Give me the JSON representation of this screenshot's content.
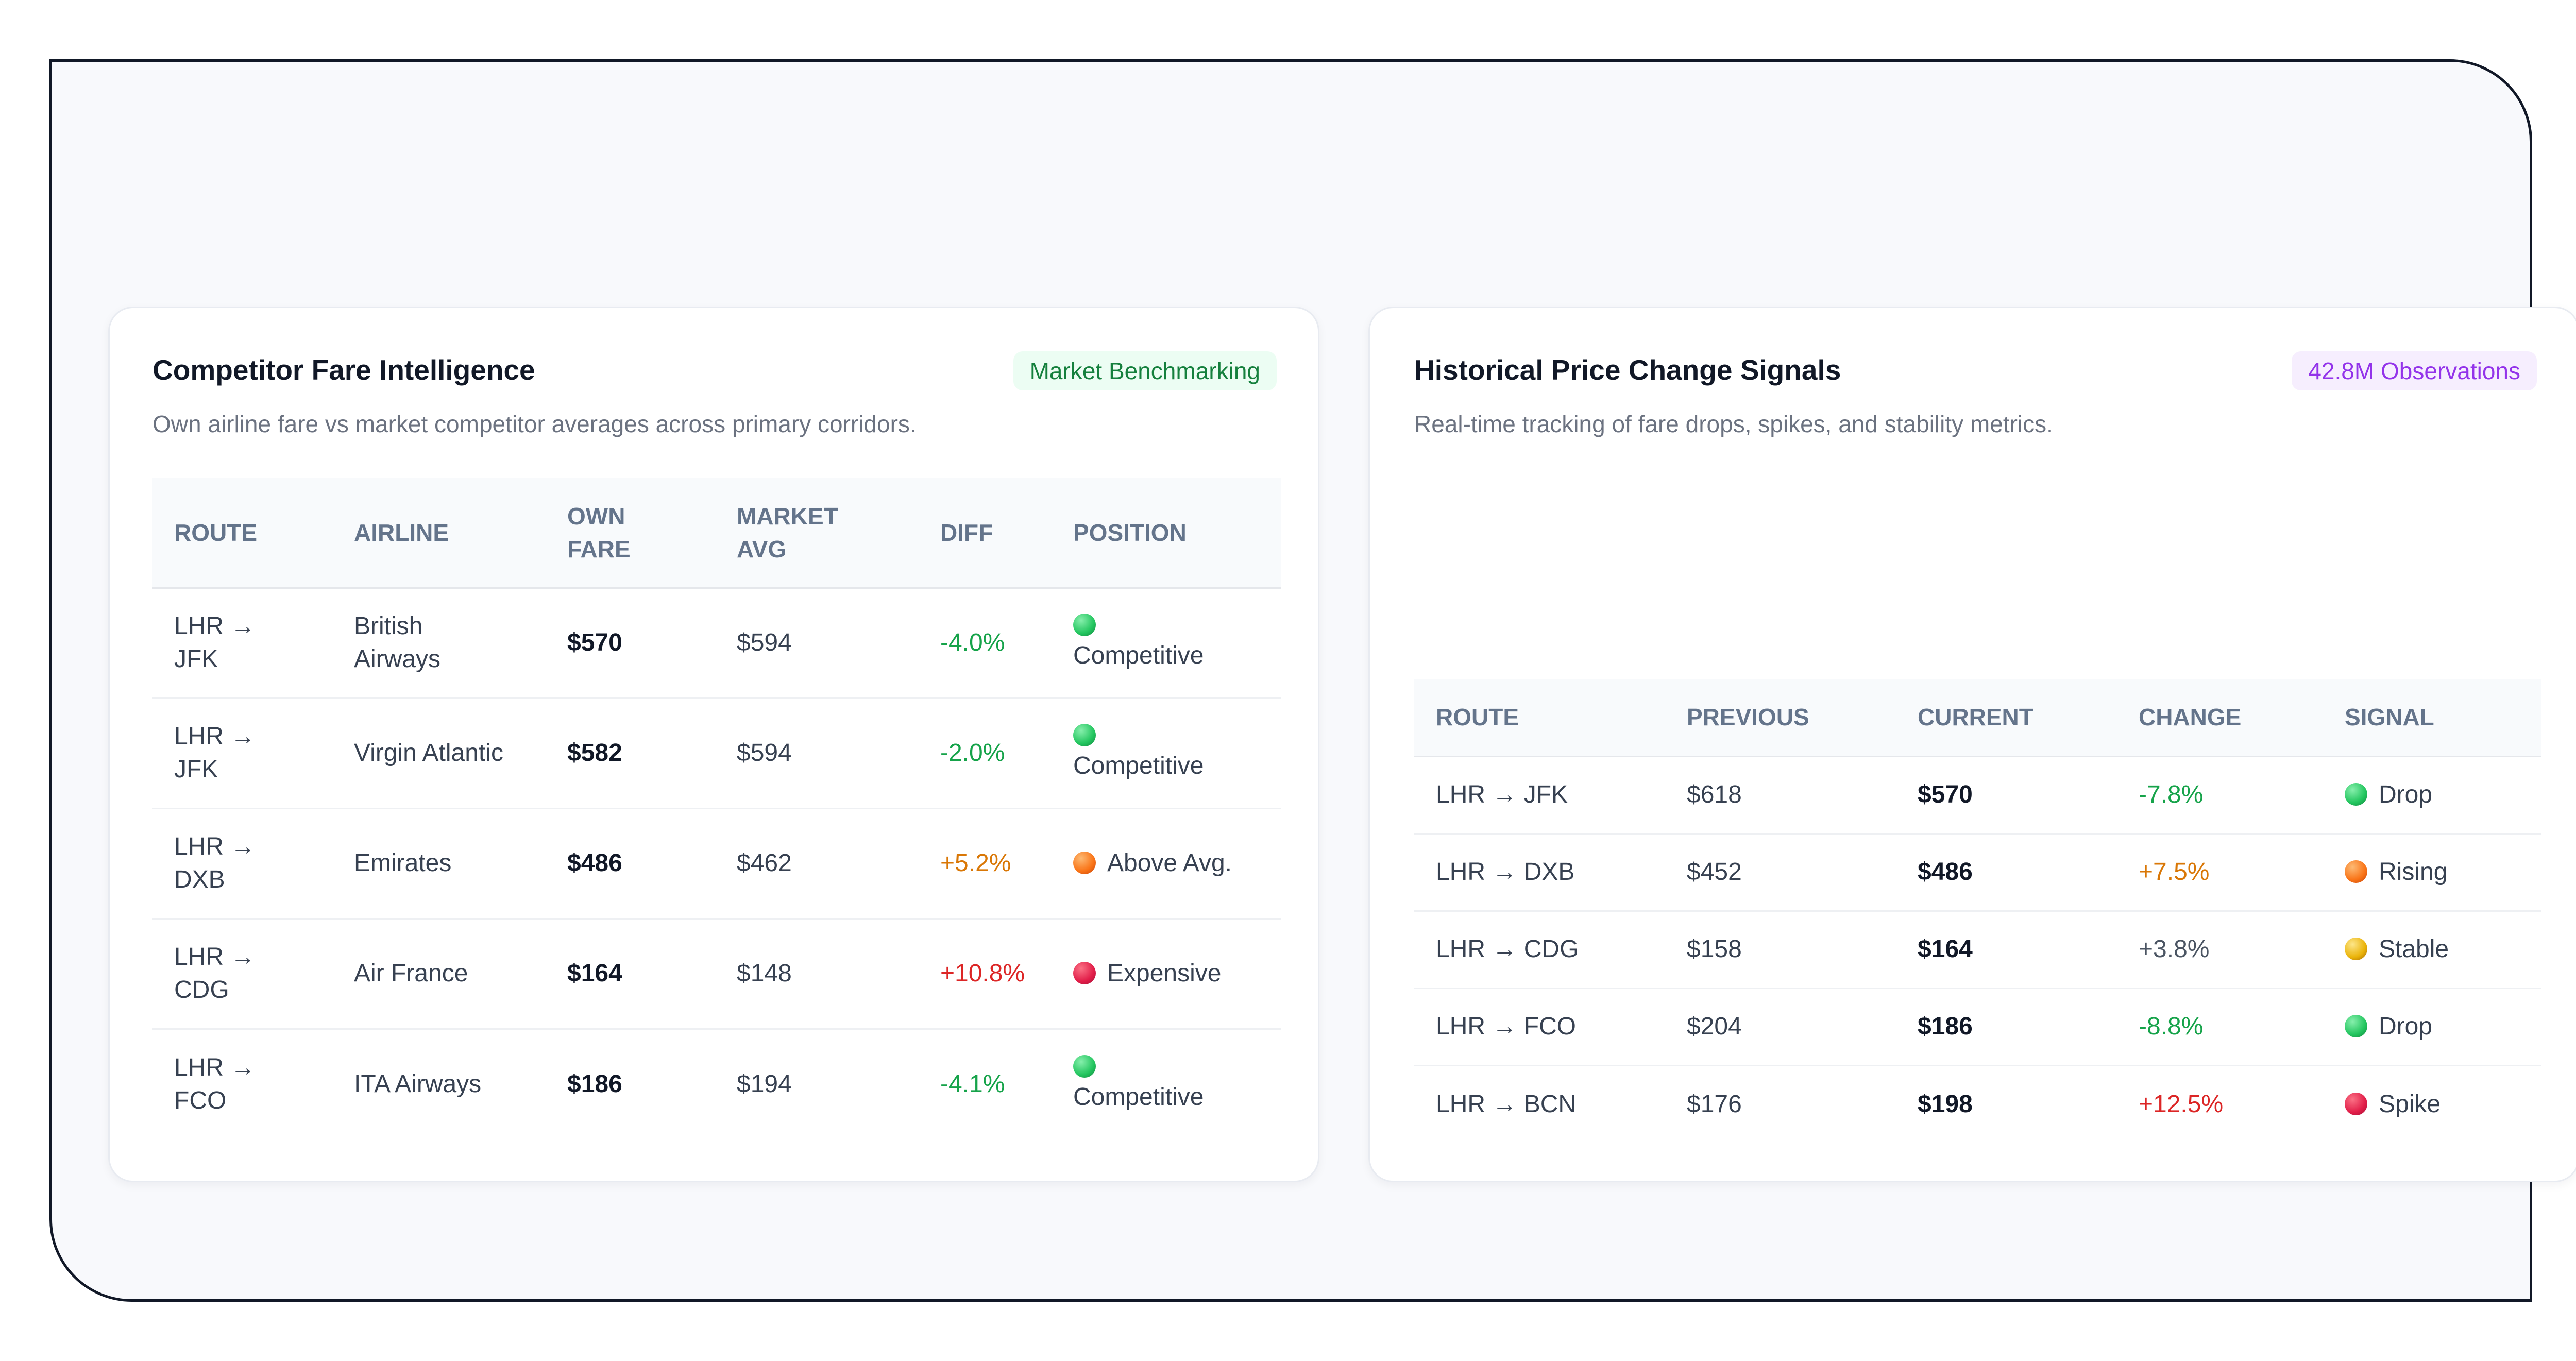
{
  "colors": {
    "positive": "#16a34a",
    "warning": "#d97706",
    "negative": "#dc2626",
    "neutral": "#4b5563",
    "badge_green_bg": "#ecfdf3",
    "badge_purple_bg": "#f6eefe"
  },
  "fare_card": {
    "title": "Competitor Fare Intelligence",
    "badge": "Market Benchmarking",
    "subtitle": "Own airline fare vs market competitor averages across primary corridors.",
    "columns": [
      "ROUTE",
      "AIRLINE",
      "OWN FARE",
      "MARKET AVG",
      "DIFF",
      "POSITION"
    ],
    "rows": [
      {
        "route": "LHR → JFK",
        "airline": "British Airways",
        "own_fare": "$570",
        "market_avg": "$594",
        "diff": "-4.0%",
        "diff_tone": "pos",
        "position": "Competitive",
        "dot": "green"
      },
      {
        "route": "LHR → JFK",
        "airline": "Virgin Atlantic",
        "own_fare": "$582",
        "market_avg": "$594",
        "diff": "-2.0%",
        "diff_tone": "pos",
        "position": "Competitive",
        "dot": "green"
      },
      {
        "route": "LHR → DXB",
        "airline": "Emirates",
        "own_fare": "$486",
        "market_avg": "$462",
        "diff": "+5.2%",
        "diff_tone": "warn",
        "position": "Above Avg.",
        "dot": "orange"
      },
      {
        "route": "LHR → CDG",
        "airline": "Air France",
        "own_fare": "$164",
        "market_avg": "$148",
        "diff": "+10.8%",
        "diff_tone": "neg",
        "position": "Expensive",
        "dot": "red"
      },
      {
        "route": "LHR → FCO",
        "airline": "ITA Airways",
        "own_fare": "$186",
        "market_avg": "$194",
        "diff": "-4.1%",
        "diff_tone": "pos",
        "position": "Competitive",
        "dot": "green"
      }
    ]
  },
  "signal_card": {
    "title": "Historical Price Change Signals",
    "badge": "42.8M Observations",
    "subtitle": "Real-time tracking of fare drops, spikes, and stability metrics.",
    "columns": [
      "ROUTE",
      "PREVIOUS",
      "CURRENT",
      "CHANGE",
      "SIGNAL"
    ],
    "rows": [
      {
        "route": "LHR → JFK",
        "previous": "$618",
        "current": "$570",
        "change": "-7.8%",
        "change_tone": "pos",
        "signal": "Drop",
        "dot": "green"
      },
      {
        "route": "LHR → DXB",
        "previous": "$452",
        "current": "$486",
        "change": "+7.5%",
        "change_tone": "warn",
        "signal": "Rising",
        "dot": "orange"
      },
      {
        "route": "LHR → CDG",
        "previous": "$158",
        "current": "$164",
        "change": "+3.8%",
        "change_tone": "neutral",
        "signal": "Stable",
        "dot": "yellow"
      },
      {
        "route": "LHR → FCO",
        "previous": "$204",
        "current": "$186",
        "change": "-8.8%",
        "change_tone": "pos",
        "signal": "Drop",
        "dot": "green"
      },
      {
        "route": "LHR → BCN",
        "previous": "$176",
        "current": "$198",
        "change": "+12.5%",
        "change_tone": "neg",
        "signal": "Spike",
        "dot": "red"
      }
    ]
  }
}
